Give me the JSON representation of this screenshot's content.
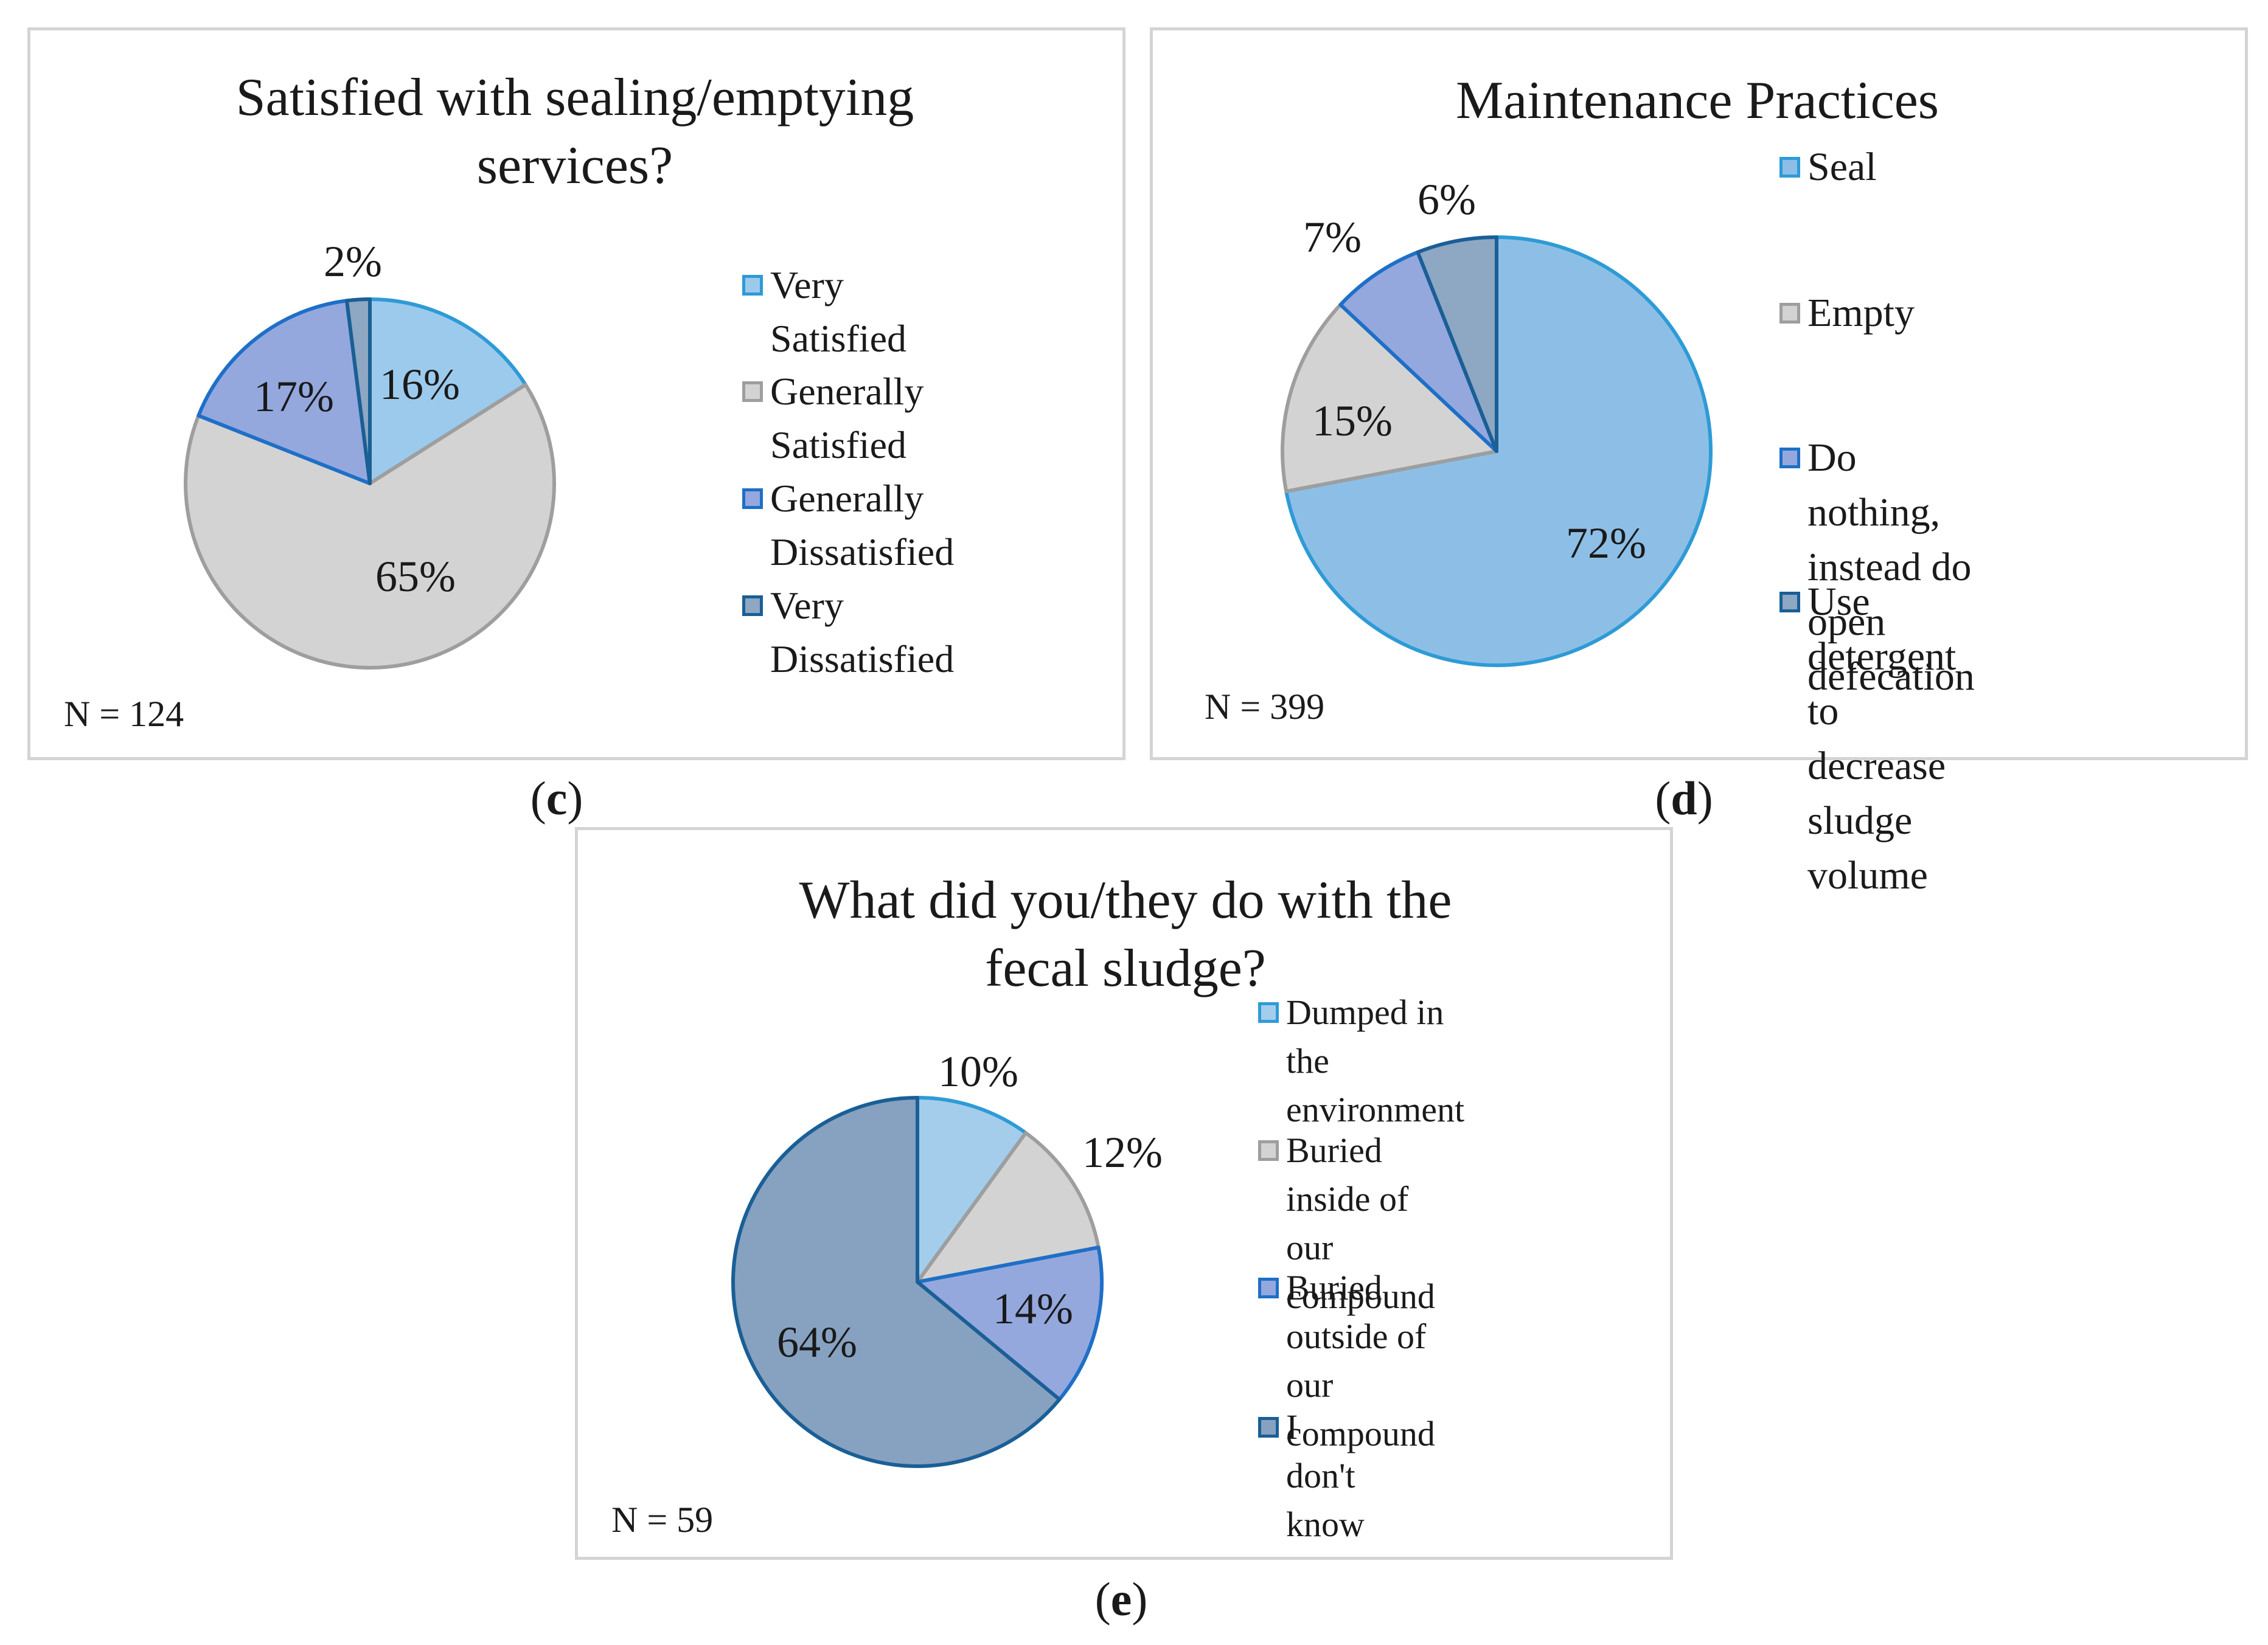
{
  "chart_data": [
    {
      "id": "c",
      "type": "pie",
      "title": "Satisfied with sealing/emptying services?",
      "title_lines": [
        "Satisfied with sealing/emptying",
        "services?"
      ],
      "caption": "c",
      "n_label": "N = 124",
      "slices": [
        {
          "name": "Very Satisfied",
          "legend_label": "Very Satisfied",
          "value": 16,
          "label": "16%",
          "fill": "#9ccaec",
          "stroke": "#2e9bd6"
        },
        {
          "name": "Generally Satisfied",
          "legend_label": "Generally\nSatisfied",
          "value": 65,
          "label": "65%",
          "fill": "#d3d3d3",
          "stroke": "#9e9e9e"
        },
        {
          "name": "Generally Dissatisfied",
          "legend_label": "Generally\nDissatisfied",
          "value": 17,
          "label": "17%",
          "fill": "#94a8de",
          "stroke": "#1e6fc7"
        },
        {
          "name": "Very Dissatisfied",
          "legend_label": "Very Dissatisfied",
          "value": 2,
          "label": "2%",
          "fill": "#8ea7c2",
          "stroke": "#1a5f96"
        }
      ]
    },
    {
      "id": "d",
      "type": "pie",
      "title": "Maintenance Practices",
      "title_lines": [
        "Maintenance Practices"
      ],
      "caption": "d",
      "n_label": "N = 399",
      "slices": [
        {
          "name": "Seal",
          "legend_label": "Seal",
          "value": 72,
          "label": "72%",
          "fill": "#8dbfe6",
          "stroke": "#2e9bd6"
        },
        {
          "name": "Empty",
          "legend_label": "Empty",
          "value": 15,
          "label": "15%",
          "fill": "#d3d3d3",
          "stroke": "#9e9e9e"
        },
        {
          "name": "Do nothing, instead do open defecation",
          "legend_label": "Do nothing, instead do\nopen defecation",
          "value": 7,
          "label": "7%",
          "fill": "#94a8de",
          "stroke": "#1e6fc7"
        },
        {
          "name": "Use detergent to decrease sludge volume",
          "legend_label": "Use detergent to\ndecrease sludge\nvolume",
          "value": 6,
          "label": "6%",
          "fill": "#8ea7c2",
          "stroke": "#1a5f96"
        }
      ]
    },
    {
      "id": "e",
      "type": "pie",
      "title": "What did you/they do with the fecal sludge?",
      "title_lines": [
        "What did you/they do with the",
        "fecal sludge?"
      ],
      "caption": "e",
      "n_label": "N = 59",
      "slices": [
        {
          "name": "Dumped in the environment",
          "legend_label": "Dumped in the\nenvironment",
          "value": 10,
          "label": "10%",
          "fill": "#a4cdec",
          "stroke": "#2e9bd6"
        },
        {
          "name": "Buried inside of our compound",
          "legend_label": "Buried inside of our\ncompound",
          "value": 12,
          "label": "12%",
          "fill": "#d3d3d3",
          "stroke": "#9e9e9e"
        },
        {
          "name": "Buried outside of our compound",
          "legend_label": "Buried outside of our\ncompound",
          "value": 14,
          "label": "14%",
          "fill": "#94a8de",
          "stroke": "#1e6fc7"
        },
        {
          "name": "I don't know",
          "legend_label": "I don't know",
          "value": 64,
          "label": "64%",
          "fill": "#87a1c0",
          "stroke": "#1a5f96"
        }
      ]
    }
  ]
}
